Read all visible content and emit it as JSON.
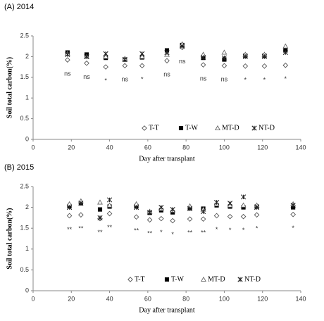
{
  "chart_data": [
    {
      "type": "scatter",
      "title": "(A) 2014",
      "x_label": "Day after transplant",
      "y_label": "Soil total carbon(%)",
      "xlim": [
        0,
        140
      ],
      "xticks": [
        0,
        20,
        40,
        60,
        80,
        100,
        120,
        140
      ],
      "ylim": [
        0,
        2.5
      ],
      "yticks": [
        0,
        0.5,
        1,
        1.5,
        2,
        2.5
      ],
      "legend": "lower right",
      "x": [
        18,
        28,
        38,
        48,
        57,
        70,
        78,
        89,
        100,
        111,
        121,
        132
      ],
      "annotations": [
        "ns",
        "ns",
        "*",
        "ns",
        "*",
        "ns",
        "ns",
        "ns",
        "ns",
        "*",
        "*",
        "*"
      ],
      "series": [
        {
          "name": "T-T",
          "marker": "diamond",
          "color": "#555555",
          "values": [
            1.92,
            1.84,
            1.75,
            1.78,
            1.78,
            1.9,
            2.22,
            1.8,
            1.78,
            1.77,
            1.77,
            1.79
          ]
        },
        {
          "name": "T-W",
          "marker": "square",
          "color": "#000000",
          "values": [
            2.1,
            2.05,
            1.97,
            1.93,
            1.98,
            2.15,
            2.28,
            1.97,
            1.93,
            2.02,
            2.02,
            2.15
          ]
        },
        {
          "name": "MT-D",
          "marker": "triangle",
          "color": "#666666",
          "values": [
            2.07,
            2.0,
            2.0,
            1.95,
            2.0,
            2.05,
            2.3,
            2.05,
            2.1,
            2.05,
            2.05,
            2.25
          ]
        },
        {
          "name": "NT-D",
          "marker": "x",
          "color": "#222222",
          "values": [
            2.05,
            2.0,
            2.07,
            1.93,
            2.07,
            2.1,
            2.25,
            1.98,
            1.97,
            2.0,
            2.0,
            2.1
          ]
        }
      ]
    },
    {
      "type": "scatter",
      "title": "(B) 2015",
      "x_label": "Day after transplant",
      "y_label": "Soil total carbon(%)",
      "xlim": [
        0,
        140
      ],
      "xticks": [
        0,
        20,
        40,
        60,
        80,
        100,
        120,
        140
      ],
      "ylim": [
        0,
        2.5
      ],
      "yticks": [
        0,
        0.5,
        1,
        1.5,
        2,
        2.5
      ],
      "legend": "lower center",
      "x": [
        19,
        25,
        35,
        40,
        54,
        61,
        67,
        73,
        82,
        89,
        96,
        103,
        110,
        117,
        136
      ],
      "annotations": [
        "**",
        "**",
        "**",
        "**",
        "**",
        "**",
        "*",
        "*",
        "**",
        "**",
        "*",
        "*",
        "*",
        "*",
        "*"
      ],
      "series": [
        {
          "name": "T-T",
          "marker": "diamond",
          "color": "#555555",
          "values": [
            1.8,
            1.82,
            1.73,
            1.85,
            1.77,
            1.7,
            1.73,
            1.68,
            1.72,
            1.72,
            1.8,
            1.78,
            1.78,
            1.82,
            1.83
          ]
        },
        {
          "name": "T-W",
          "marker": "square",
          "color": "#000000",
          "values": [
            2.03,
            2.1,
            1.95,
            2.02,
            2.03,
            1.87,
            1.93,
            1.88,
            1.98,
            1.97,
            2.05,
            2.02,
            2.0,
            2.02,
            2.0
          ]
        },
        {
          "name": "MT-D",
          "marker": "triangle",
          "color": "#666666",
          "values": [
            2.08,
            2.15,
            2.12,
            2.05,
            2.08,
            1.9,
            1.97,
            1.93,
            2.03,
            1.95,
            2.08,
            2.05,
            2.05,
            2.05,
            2.08
          ]
        },
        {
          "name": "NT-D",
          "marker": "x",
          "color": "#222222",
          "values": [
            2.0,
            2.1,
            1.75,
            2.18,
            2.0,
            1.88,
            2.0,
            1.95,
            1.97,
            1.9,
            2.12,
            2.1,
            2.25,
            2.0,
            2.05
          ]
        }
      ]
    }
  ]
}
